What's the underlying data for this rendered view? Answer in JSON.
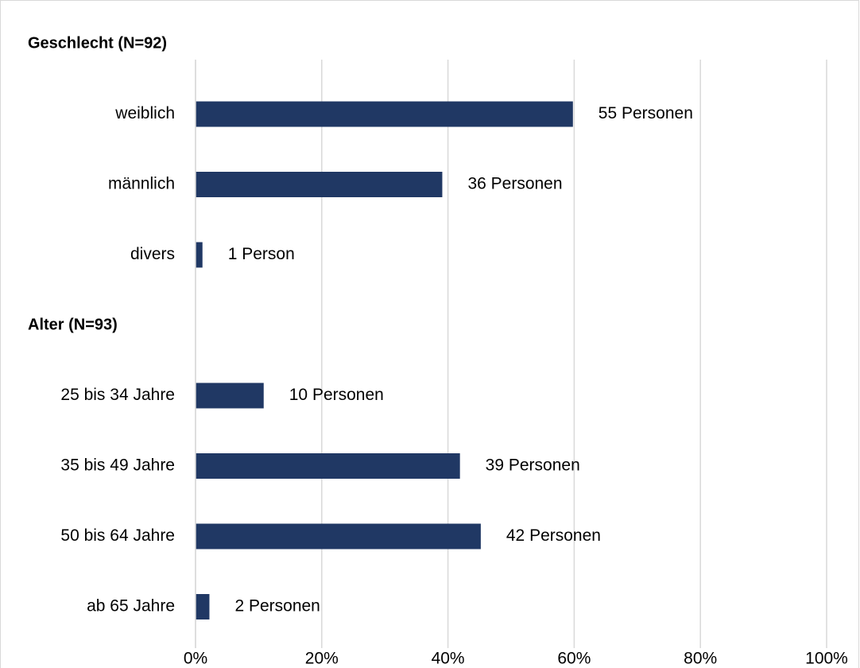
{
  "chart_data": {
    "type": "bar",
    "orientation": "horizontal",
    "color": "#203864",
    "xlim": [
      0,
      100
    ],
    "xticks": [
      {
        "value": 0,
        "label": "0%"
      },
      {
        "value": 20,
        "label": "20%"
      },
      {
        "value": 40,
        "label": "40%"
      },
      {
        "value": 60,
        "label": "60%"
      },
      {
        "value": 80,
        "label": "80%"
      },
      {
        "value": 100,
        "label": "100%"
      }
    ],
    "grid": true,
    "groups": [
      {
        "title": "Geschlecht (N=92)",
        "categories": [
          "weiblich",
          "männlich",
          "divers"
        ],
        "values": [
          59.8,
          39.1,
          1.1
        ],
        "annotations": [
          "55 Personen",
          "36 Personen",
          "1 Person"
        ]
      },
      {
        "title": "Alter (N=93)",
        "categories": [
          "25 bis 34 Jahre",
          "35 bis 49 Jahre",
          "50 bis 64 Jahre",
          "ab 65 Jahre"
        ],
        "values": [
          10.8,
          41.9,
          45.2,
          2.2
        ],
        "annotations": [
          "10 Personen",
          "39 Personen",
          "42 Personen",
          "2 Personen"
        ]
      }
    ]
  }
}
